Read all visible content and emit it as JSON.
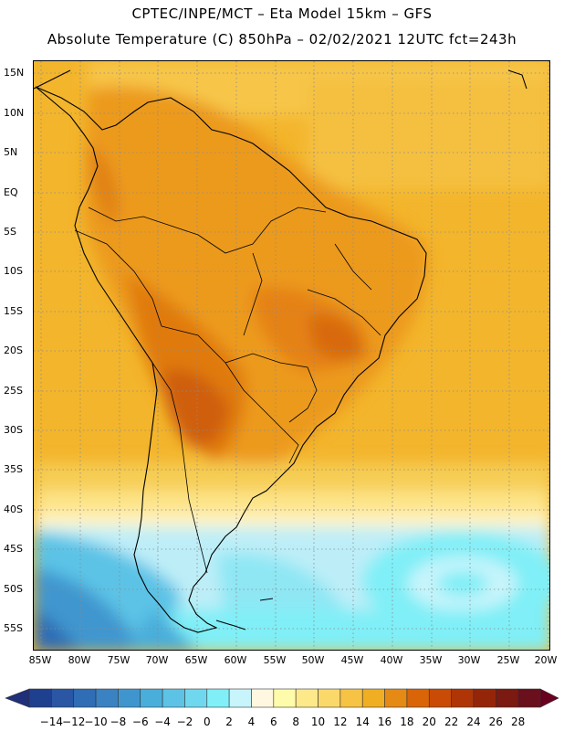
{
  "header": {
    "line1": "CPTEC/INPE/MCT –  Eta Model 15km – GFS",
    "line2": "Absolute Temperature (C) 850hPa – 02/02/2021 12UTC fct=243h"
  },
  "map": {
    "lat_labels": [
      "15N",
      "10N",
      "5N",
      "EQ",
      "5S",
      "10S",
      "15S",
      "20S",
      "25S",
      "30S",
      "35S",
      "40S",
      "45S",
      "50S",
      "55S"
    ],
    "lon_labels": [
      "85W",
      "80W",
      "75W",
      "70W",
      "65W",
      "60W",
      "55W",
      "50W",
      "45W",
      "40W",
      "35W",
      "30W",
      "25W",
      "20W"
    ],
    "grid": "dotted"
  },
  "colorbar": {
    "labels": [
      "-14",
      "-12",
      "-10",
      "-8",
      "-6",
      "-4",
      "-2",
      "0",
      "2",
      "4",
      "6",
      "8",
      "10",
      "12",
      "14",
      "16",
      "18",
      "20",
      "22",
      "24",
      "26",
      "28"
    ],
    "colors": [
      "#1f3f8f",
      "#2a56a3",
      "#2f6db5",
      "#3a82c2",
      "#3f96cf",
      "#4aaedb",
      "#5cc3e6",
      "#6fd8ef",
      "#80eff7",
      "#c8f4fb",
      "#fff7e0",
      "#fefbaa",
      "#fde98a",
      "#fbd86a",
      "#f6c344",
      "#f0ae22",
      "#e58a14",
      "#d96508",
      "#c94b06",
      "#b03506",
      "#952509",
      "#7a1a10",
      "#6a0f1c"
    ],
    "under_color": "#1f2f7a",
    "over_color": "#6a0020"
  }
}
